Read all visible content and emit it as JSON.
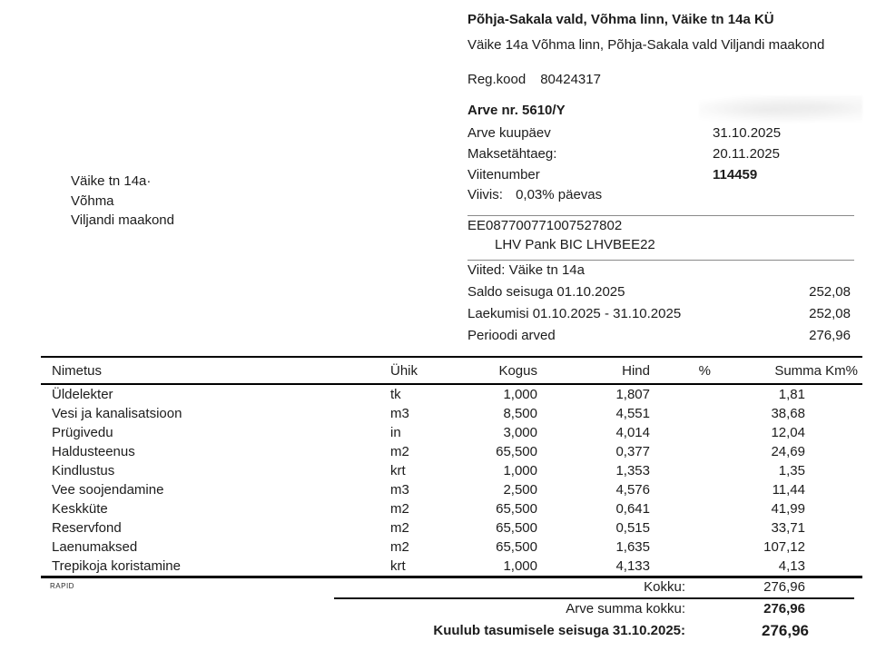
{
  "recipient": {
    "name": "Põhja-Sakala vald, Võhma linn, Väike tn 14a KÜ",
    "address_line": "Väike 14a Võhma linn, Põhja-Sakala vald Viljandi maakond",
    "reg_label": "Reg.kood",
    "reg_code": "80424317"
  },
  "postal_address": {
    "lines": [
      "Väike tn 14a·",
      "Võhma",
      "Viljandi maakond"
    ]
  },
  "invoice": {
    "number_line": "Arve nr. 5610/Y",
    "rows": [
      {
        "label": "Arve kuupäev",
        "value": "31.10.2025"
      },
      {
        "label": "Maksetähtaeg:",
        "value": "20.11.2025"
      },
      {
        "label": "Viitenumber",
        "value": "114459"
      }
    ],
    "viivis_label": "Viivis:",
    "viivis_value": "0,03% päevas"
  },
  "bank": {
    "iban": "EE087700771007527802",
    "bank_line": "LHV Pank BIC LHVBEE22"
  },
  "balance": {
    "reference_line": "Viited: Väike tn 14a",
    "rows": [
      {
        "label": "Saldo seisuga 01.10.2025",
        "value": "252,08"
      },
      {
        "label": "Laekumisi 01.10.2025 - 31.10.2025",
        "value": "252,08"
      },
      {
        "label": "Perioodi arved",
        "value": "276,96"
      }
    ]
  },
  "table": {
    "headers": [
      "Nimetus",
      "Ühik",
      "Kogus",
      "Hind",
      "%",
      "Summa Km%"
    ],
    "rows": [
      [
        "Üldelekter",
        "tk",
        "1,000",
        "1,807",
        "",
        "1,81"
      ],
      [
        "Vesi ja kanalisatsioon",
        "m3",
        "8,500",
        "4,551",
        "",
        "38,68"
      ],
      [
        "Prügivedu",
        "in",
        "3,000",
        "4,014",
        "",
        "12,04"
      ],
      [
        "Haldusteenus",
        "m2",
        "65,500",
        "0,377",
        "",
        "24,69"
      ],
      [
        "Kindlustus",
        "krt",
        "1,000",
        "1,353",
        "",
        "1,35"
      ],
      [
        "Vee soojendamine",
        "m3",
        "2,500",
        "4,576",
        "",
        "11,44"
      ],
      [
        "Keskküte",
        "m2",
        "65,500",
        "0,641",
        "",
        "41,99"
      ],
      [
        "Reservfond",
        "m2",
        "65,500",
        "0,515",
        "",
        "33,71"
      ],
      [
        "Laenumaksed",
        "m2",
        "65,500",
        "1,635",
        "",
        "107,12"
      ],
      [
        "Trepikoja koristamine",
        "krt",
        "1,000",
        "4,133",
        "",
        "4,13"
      ]
    ]
  },
  "totals": {
    "watermark": "RAPID",
    "kokku_label": "Kokku:",
    "kokku_value": "276,96",
    "arve_summa_label": "Arve summa kokku:",
    "arve_summa_value": "276,96",
    "kuulub_label": "Kuulub tasumisele seisuga 31.10.2025:",
    "kuulub_value": "276,96"
  }
}
